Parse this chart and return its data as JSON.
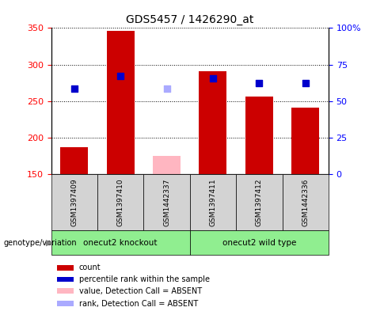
{
  "title": "GDS5457 / 1426290_at",
  "samples": [
    "GSM1397409",
    "GSM1397410",
    "GSM1442337",
    "GSM1397411",
    "GSM1397412",
    "GSM1442336"
  ],
  "groups": [
    {
      "label": "onecut2 knockout",
      "color": "#90EE90",
      "indices": [
        0,
        1,
        2
      ]
    },
    {
      "label": "onecut2 wild type",
      "color": "#90EE90",
      "indices": [
        3,
        4,
        5
      ]
    }
  ],
  "counts": [
    187,
    346,
    null,
    291,
    256,
    241
  ],
  "count_absent": [
    null,
    null,
    175,
    null,
    null,
    null
  ],
  "percentile_ranks_left": [
    267,
    284,
    null,
    281,
    275,
    275
  ],
  "percentile_ranks_absent_left": [
    null,
    null,
    267,
    null,
    null,
    null
  ],
  "bar_color": "#CC0000",
  "bar_absent_color": "#FFB6C1",
  "dot_color": "#0000CC",
  "dot_absent_color": "#AAAAFF",
  "ylim_left": [
    150,
    350
  ],
  "ylim_right": [
    0,
    100
  ],
  "yticks_left": [
    150,
    200,
    250,
    300,
    350
  ],
  "yticks_right": [
    0,
    25,
    50,
    75,
    100
  ],
  "ytick_labels_left": [
    "150",
    "200",
    "250",
    "300",
    "350"
  ],
  "ytick_labels_right": [
    "0",
    "25",
    "50",
    "75",
    "100%"
  ],
  "background_plot": "#FFFFFF",
  "background_label": "#D3D3D3",
  "legend_items": [
    {
      "color": "#CC0000",
      "label": "count"
    },
    {
      "color": "#0000CC",
      "label": "percentile rank within the sample"
    },
    {
      "color": "#FFB6C1",
      "label": "value, Detection Call = ABSENT"
    },
    {
      "color": "#AAAAFF",
      "label": "rank, Detection Call = ABSENT"
    }
  ],
  "genotype_label": "genotype/variation",
  "bar_width": 0.6,
  "dot_size": 35,
  "figsize": [
    4.61,
    3.93
  ],
  "dpi": 100
}
